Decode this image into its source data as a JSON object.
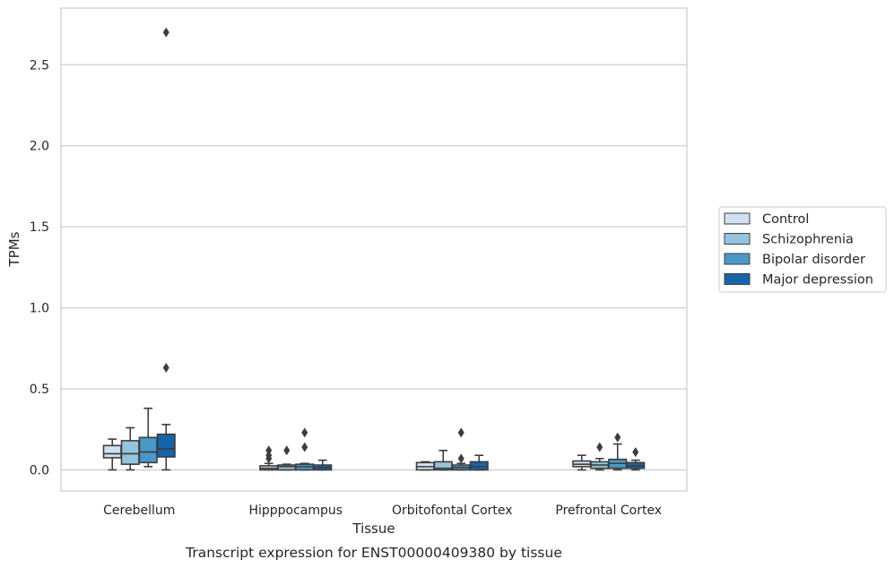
{
  "chart_data": {
    "type": "box",
    "title": "",
    "caption": "Transcript expression for ENST00000409380 by tissue",
    "xlabel": "Tissue",
    "ylabel": "TPMs",
    "ylim": [
      -0.13,
      2.85
    ],
    "yticks": [
      "0.0",
      "0.5",
      "1.0",
      "1.5",
      "2.0",
      "2.5"
    ],
    "ytick_values": [
      0.0,
      0.5,
      1.0,
      1.5,
      2.0,
      2.5
    ],
    "grid": "horizontal",
    "legend_position": "right",
    "categories": [
      "Cerebellum",
      "Hipppocampus",
      "Orbitofontal Cortex",
      "Prefrontal Cortex"
    ],
    "series": [
      {
        "name": "Control",
        "color": "#d0e1f2",
        "boxes": [
          {
            "whislo": 0.0,
            "q1": 0.075,
            "med": 0.1,
            "q3": 0.15,
            "whishi": 0.19,
            "fliers": []
          },
          {
            "whislo": 0.0,
            "q1": 0.0,
            "med": 0.01,
            "q3": 0.025,
            "whishi": 0.04,
            "fliers": [
              0.07,
              0.09,
              0.12
            ]
          },
          {
            "whislo": 0.0,
            "q1": 0.0,
            "med": 0.02,
            "q3": 0.045,
            "whishi": 0.05,
            "fliers": []
          },
          {
            "whislo": 0.0,
            "q1": 0.02,
            "med": 0.035,
            "q3": 0.055,
            "whishi": 0.09,
            "fliers": []
          }
        ]
      },
      {
        "name": "Schizophrenia",
        "color": "#94c4df",
        "boxes": [
          {
            "whislo": 0.0,
            "q1": 0.035,
            "med": 0.1,
            "q3": 0.18,
            "whishi": 0.26,
            "fliers": []
          },
          {
            "whislo": 0.0,
            "q1": 0.0,
            "med": 0.02,
            "q3": 0.03,
            "whishi": 0.035,
            "fliers": [
              0.12
            ]
          },
          {
            "whislo": 0.0,
            "q1": 0.0,
            "med": 0.01,
            "q3": 0.05,
            "whishi": 0.12,
            "fliers": []
          },
          {
            "whislo": 0.0,
            "q1": 0.01,
            "med": 0.03,
            "q3": 0.05,
            "whishi": 0.07,
            "fliers": [
              0.14
            ]
          }
        ]
      },
      {
        "name": "Bipolar disorder",
        "color": "#4a98c9",
        "boxes": [
          {
            "whislo": 0.02,
            "q1": 0.045,
            "med": 0.11,
            "q3": 0.2,
            "whishi": 0.38,
            "fliers": []
          },
          {
            "whislo": 0.0,
            "q1": 0.0,
            "med": 0.02,
            "q3": 0.035,
            "whishi": 0.04,
            "fliers": [
              0.14,
              0.23
            ]
          },
          {
            "whislo": 0.0,
            "q1": 0.0,
            "med": 0.015,
            "q3": 0.03,
            "whishi": 0.04,
            "fliers": [
              0.07,
              0.23
            ]
          },
          {
            "whislo": 0.0,
            "q1": 0.01,
            "med": 0.04,
            "q3": 0.065,
            "whishi": 0.16,
            "fliers": [
              0.2
            ]
          }
        ]
      },
      {
        "name": "Major depression",
        "color": "#1764ab",
        "boxes": [
          {
            "whislo": 0.0,
            "q1": 0.08,
            "med": 0.13,
            "q3": 0.22,
            "whishi": 0.28,
            "fliers": [
              0.63,
              2.7
            ]
          },
          {
            "whislo": 0.0,
            "q1": 0.0,
            "med": 0.015,
            "q3": 0.03,
            "whishi": 0.06,
            "fliers": []
          },
          {
            "whislo": 0.0,
            "q1": 0.0,
            "med": 0.02,
            "q3": 0.05,
            "whishi": 0.09,
            "fliers": []
          },
          {
            "whislo": 0.0,
            "q1": 0.01,
            "med": 0.025,
            "q3": 0.045,
            "whishi": 0.06,
            "fliers": [
              0.11
            ]
          }
        ]
      }
    ]
  }
}
